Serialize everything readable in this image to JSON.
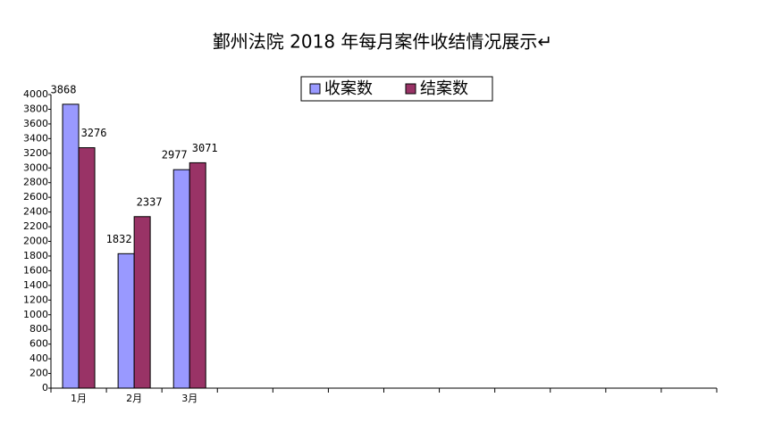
{
  "chart_data": {
    "type": "bar",
    "title": "鄞州法院 2018 年每月案件收结情况展示↵",
    "categories": [
      "1月",
      "2月",
      "3月",
      null,
      null,
      null,
      null,
      null,
      null,
      null,
      null,
      null
    ],
    "series": [
      {
        "name": "收案数",
        "color": "#9999ff",
        "values": [
          3868,
          1832,
          2977,
          null,
          null,
          null,
          null,
          null,
          null,
          null,
          null,
          null
        ]
      },
      {
        "name": "结案数",
        "color": "#993366",
        "values": [
          3276,
          2337,
          3071,
          null,
          null,
          null,
          null,
          null,
          null,
          null,
          null,
          null
        ]
      }
    ],
    "ylim": [
      0,
      4000
    ],
    "yticks": [
      0,
      200,
      400,
      600,
      800,
      1000,
      1200,
      1400,
      1600,
      1800,
      2000,
      2200,
      2400,
      2600,
      2800,
      3000,
      3200,
      3400,
      3600,
      3800,
      4000
    ],
    "legend": "top"
  }
}
